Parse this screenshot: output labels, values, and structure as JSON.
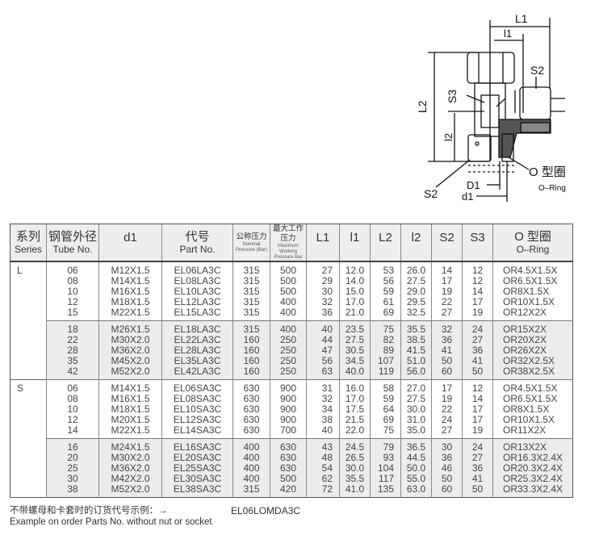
{
  "diagram": {
    "labels": {
      "L1": "L1",
      "l1": "l1",
      "S2_top": "S2",
      "L2": "L2",
      "S3": "S3",
      "l2": "l2",
      "oring_cn": "O 型圈",
      "oring_en": "O–Ring",
      "S2_bottom": "S2",
      "D1": "D1",
      "d1": "d1"
    }
  },
  "table": {
    "headers": {
      "series_cn": "系列",
      "series_en": "Series",
      "tube_cn": "钢管外径",
      "tube_en": "Tube No.",
      "d1": "d1",
      "part_cn": "代号",
      "part_en": "Part No.",
      "nominal_cn": "公称压力",
      "nominal_en": "Nominal Pressure (Bar)",
      "max_cn": "最大工作压力",
      "max_en": "Maximum Working Pressure Bar",
      "L1": "L1",
      "l1": "l1",
      "L2": "L2",
      "l2": "l2",
      "S2": "S2",
      "S3": "S3",
      "oring_cn": "O 型圈",
      "oring_en": "O–Ring"
    },
    "series": [
      {
        "name": "L",
        "groups": [
          [
            [
              "06",
              "M12X1.5",
              "EL06LA3C",
              "315",
              "500",
              "27",
              "12.0",
              "53",
              "26.0",
              "14",
              "12",
              "OR4.5X1.5X"
            ],
            [
              "08",
              "M14X1.5",
              "EL08LA3C",
              "315",
              "500",
              "29",
              "14.0",
              "56",
              "27.5",
              "17",
              "12",
              "OR6.5X1.5X"
            ],
            [
              "10",
              "M16X1.5",
              "EL10LA3C",
              "315",
              "500",
              "30",
              "15.0",
              "59",
              "29.0",
              "19",
              "14",
              "OR8X1.5X"
            ],
            [
              "12",
              "M18X1.5",
              "EL12LA3C",
              "315",
              "400",
              "32",
              "17.0",
              "61",
              "29.5",
              "22",
              "17",
              "OR10X1.5X"
            ],
            [
              "15",
              "M22X1.5",
              "EL15LA3C",
              "315",
              "400",
              "36",
              "21.0",
              "69",
              "32.5",
              "27",
              "19",
              "OR12X2X"
            ]
          ],
          [
            [
              "18",
              "M26X1.5",
              "EL18LA3C",
              "315",
              "400",
              "40",
              "23.5",
              "75",
              "35.5",
              "32",
              "24",
              "OR15X2X"
            ],
            [
              "22",
              "M30X2.0",
              "EL22LA3C",
              "160",
              "250",
              "44",
              "27.5",
              "82",
              "38.5",
              "36",
              "27",
              "OR20X2X"
            ],
            [
              "28",
              "M36X2.0",
              "EL28LA3C",
              "160",
              "250",
              "47",
              "30.5",
              "89",
              "41.5",
              "41",
              "36",
              "OR26X2X"
            ],
            [
              "35",
              "M45X2.0",
              "EL35LA3C",
              "160",
              "250",
              "56",
              "34.5",
              "107",
              "51.0",
              "50",
              "41",
              "OR32X2.5X"
            ],
            [
              "42",
              "M52X2.0",
              "EL42LA3C",
              "160",
              "250",
              "63",
              "40.0",
              "119",
              "56.0",
              "60",
              "50",
              "OR38X2.5X"
            ]
          ]
        ]
      },
      {
        "name": "S",
        "groups": [
          [
            [
              "06",
              "M14X1.5",
              "EL06SA3C",
              "630",
              "900",
              "31",
              "16.0",
              "58",
              "27.0",
              "17",
              "12",
              "OR4.5X1.5X"
            ],
            [
              "08",
              "M16X1.5",
              "EL08SA3C",
              "630",
              "900",
              "32",
              "17.0",
              "59",
              "27.5",
              "19",
              "14",
              "OR6.5X1.5X"
            ],
            [
              "10",
              "M18X1.5",
              "EL10SA3C",
              "630",
              "900",
              "34",
              "17.5",
              "64",
              "30.0",
              "22",
              "17",
              "OR8X1.5X"
            ],
            [
              "12",
              "M20X1.5",
              "EL12SA3C",
              "630",
              "900",
              "38",
              "21.5",
              "69",
              "31.0",
              "24",
              "17",
              "OR10X1.5X"
            ],
            [
              "14",
              "M22X1.5",
              "EL14SA3C",
              "630",
              "700",
              "40",
              "22.0",
              "75",
              "35.0",
              "27",
              "19",
              "OR11X2X"
            ]
          ],
          [
            [
              "16",
              "M24X1.5",
              "EL16SA3C",
              "400",
              "630",
              "43",
              "24.5",
              "79",
              "36.5",
              "30",
              "24",
              "OR13X2X"
            ],
            [
              "20",
              "M30X2.0",
              "EL20SA3C",
              "400",
              "630",
              "48",
              "26.5",
              "93",
              "44.5",
              "36",
              "27",
              "OR16.3X2.4X"
            ],
            [
              "25",
              "M36X2.0",
              "EL25SA3C",
              "400",
              "630",
              "54",
              "30.0",
              "104",
              "50.0",
              "46",
              "36",
              "OR20.3X2.4X"
            ],
            [
              "30",
              "M42X2.0",
              "EL30SA3C",
              "400",
              "500",
              "62",
              "35.5",
              "117",
              "55.0",
              "50",
              "41",
              "OR25.3X2.4X"
            ],
            [
              "38",
              "M52X2.0",
              "EL38SA3C",
              "315",
              "420",
              "72",
              "41.0",
              "135",
              "63.0",
              "60",
              "50",
              "OR33.3X2.4X"
            ]
          ]
        ]
      }
    ]
  },
  "footer": {
    "note_cn": "不带螺母和卡套时的订货代号示例：→",
    "note_en": "Example on order Parts No. without nut or socket",
    "example_code": "EL06LOMDA3C"
  }
}
